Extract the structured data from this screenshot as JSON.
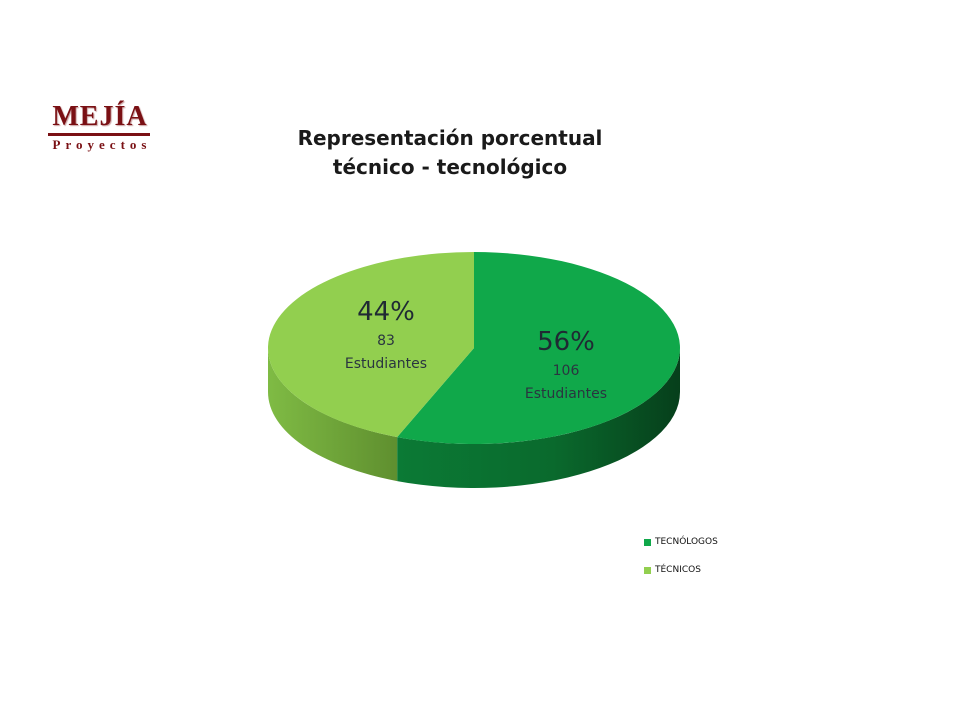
{
  "logo": {
    "name": "MEJÍA",
    "tagline": "Proyectos"
  },
  "chart_data": {
    "type": "pie",
    "title_lines": [
      "Representación porcentual",
      "técnico - tecnológico"
    ],
    "three_d": true,
    "legend_position": "bottom-right",
    "slices": [
      {
        "name": "TECNÓLOGOS",
        "value": 106,
        "percent_label": "56%",
        "count_label": "106",
        "unit_label": "Estudiantes",
        "color": "#10a84a",
        "side_color": "#0d8a3c"
      },
      {
        "name": "TÉCNICOS",
        "value": 83,
        "percent_label": "44%",
        "count_label": "83",
        "unit_label": "Estudiantes",
        "color": "#92cf4f",
        "side_color": "#6ea23a"
      }
    ]
  }
}
